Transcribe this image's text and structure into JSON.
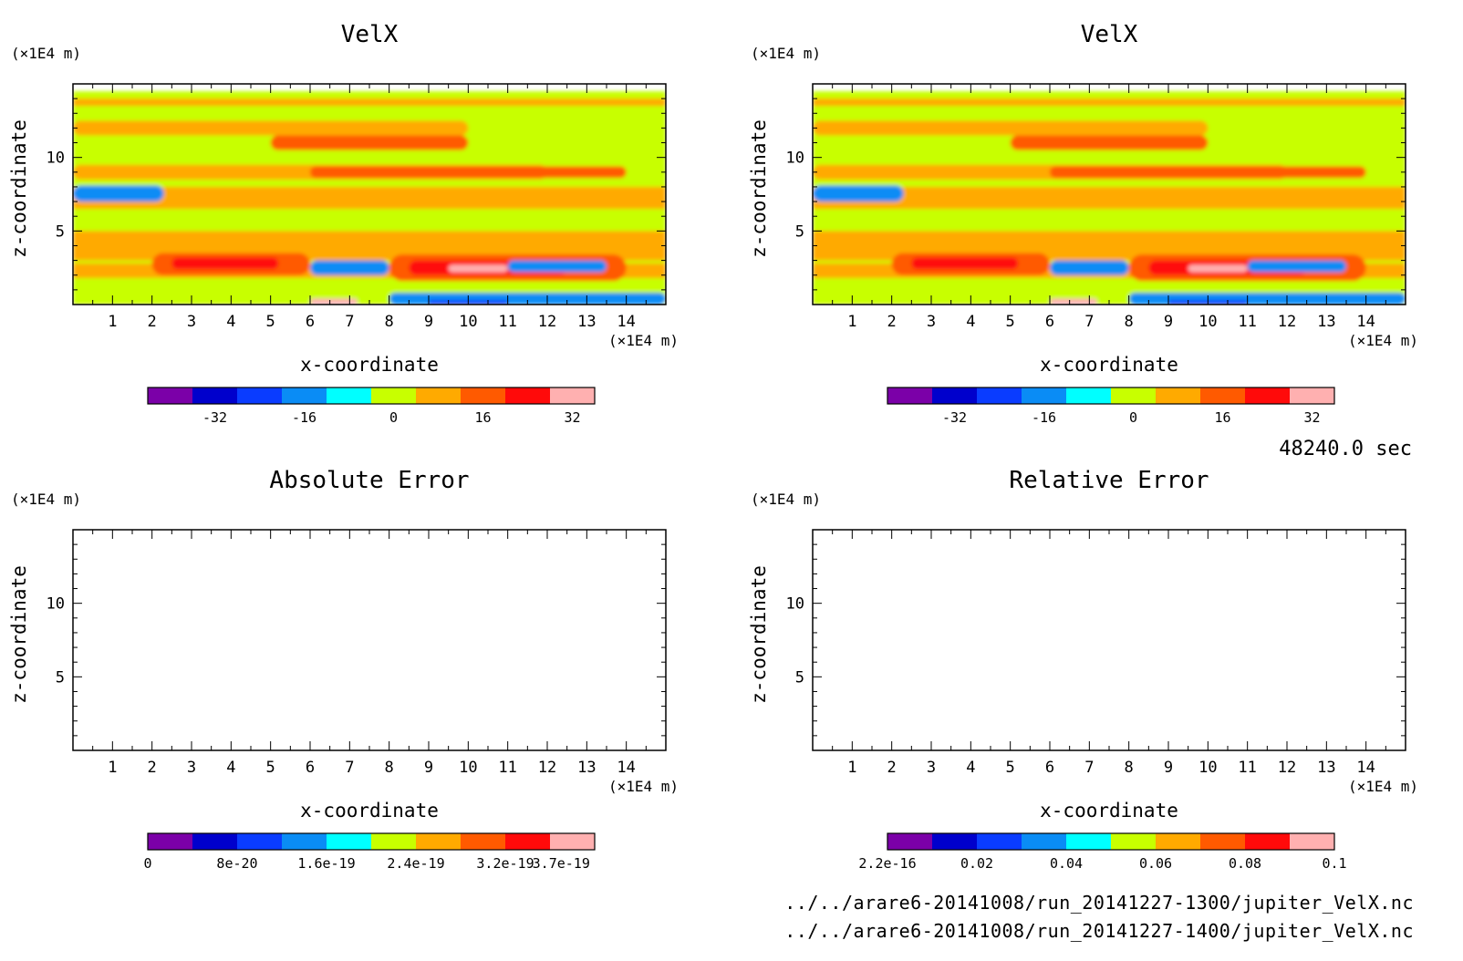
{
  "colors": {
    "palette": [
      "#7B00A8",
      "#0000CC",
      "#0A3CFF",
      "#0A8CF5",
      "#00FFFF",
      "#C8FF00",
      "#FFAA00",
      "#FF5A00",
      "#FF0A0A",
      "#FFB0B0"
    ],
    "frame": "#000000"
  },
  "time_label": "48240.0 sec",
  "footer": {
    "file1": "../../arare6-20141008/run_20141227-1300/jupiter_VelX.nc",
    "file2": "../../arare6-20141008/run_20141227-1400/jupiter_VelX.nc"
  },
  "panels": [
    {
      "title": "VelX",
      "xlabel": "x-coordinate",
      "ylabel": "z-coordinate",
      "xunit": "(×1E4 m)",
      "yunit": "(×1E4 m)",
      "xticks": [
        "1",
        "2",
        "3",
        "4",
        "5",
        "6",
        "7",
        "8",
        "9",
        "10",
        "11",
        "12",
        "13",
        "14"
      ],
      "yticks": [
        "5",
        "10"
      ],
      "colorbar_ticks": [
        [
          "-32",
          1.5
        ],
        [
          "-16",
          3.5
        ],
        [
          "0",
          5.5
        ],
        [
          "16",
          7.5
        ],
        [
          "32",
          9.5
        ]
      ]
    },
    {
      "title": "VelX",
      "xlabel": "x-coordinate",
      "ylabel": "z-coordinate",
      "xunit": "(×1E4 m)",
      "yunit": "(×1E4 m)",
      "xticks": [
        "1",
        "2",
        "3",
        "4",
        "5",
        "6",
        "7",
        "8",
        "9",
        "10",
        "11",
        "12",
        "13",
        "14"
      ],
      "yticks": [
        "5",
        "10"
      ],
      "colorbar_ticks": [
        [
          "-32",
          1.5
        ],
        [
          "-16",
          3.5
        ],
        [
          "0",
          5.5
        ],
        [
          "16",
          7.5
        ],
        [
          "32",
          9.5
        ]
      ]
    },
    {
      "title": "Absolute Error",
      "xlabel": "x-coordinate",
      "ylabel": "z-coordinate",
      "xunit": "(×1E4 m)",
      "yunit": "(×1E4 m)",
      "xticks": [
        "1",
        "2",
        "3",
        "4",
        "5",
        "6",
        "7",
        "8",
        "9",
        "10",
        "11",
        "12",
        "13",
        "14"
      ],
      "yticks": [
        "5",
        "10"
      ],
      "colorbar_ticks": [
        [
          "0",
          0
        ],
        [
          "8e-20",
          2
        ],
        [
          "1.6e-19",
          4
        ],
        [
          "2.4e-19",
          6
        ],
        [
          "3.2e-19",
          8
        ],
        [
          "3.7e-19",
          9.25
        ]
      ]
    },
    {
      "title": "Relative Error",
      "xlabel": "x-coordinate",
      "ylabel": "z-coordinate",
      "xunit": "(×1E4 m)",
      "yunit": "(×1E4 m)",
      "xticks": [
        "1",
        "2",
        "3",
        "4",
        "5",
        "6",
        "7",
        "8",
        "9",
        "10",
        "11",
        "12",
        "13",
        "14"
      ],
      "yticks": [
        "5",
        "10"
      ],
      "colorbar_ticks": [
        [
          "2.2e-16",
          0
        ],
        [
          "0.02",
          2
        ],
        [
          "0.04",
          4
        ],
        [
          "0.06",
          6
        ],
        [
          "0.08",
          8
        ],
        [
          "0.1",
          10
        ]
      ]
    }
  ],
  "chart_data": [
    {
      "type": "heatmap",
      "title": "VelX",
      "xlabel": "x-coordinate",
      "ylabel": "z-coordinate",
      "xlim": [
        0,
        15
      ],
      "ylim": [
        0,
        15
      ],
      "colorbar": {
        "levels": [
          -40,
          -32,
          -24,
          -16,
          -8,
          0,
          8,
          16,
          24,
          32,
          40
        ],
        "tick_labels": [
          "-32",
          "-16",
          "0",
          "16",
          "32"
        ]
      },
      "features": [
        {
          "x": [
            0,
            15
          ],
          "z": [
            0,
            14.5
          ],
          "level": 5
        },
        {
          "x": [
            0,
            15
          ],
          "z": [
            13.5,
            14
          ],
          "level": 6
        },
        {
          "x": [
            0,
            10
          ],
          "z": [
            11.5,
            12.5
          ],
          "level": 6
        },
        {
          "x": [
            5,
            10
          ],
          "z": [
            10.5,
            11.5
          ],
          "level": 7
        },
        {
          "x": [
            0,
            12
          ],
          "z": [
            8.5,
            9.5
          ],
          "level": 6
        },
        {
          "x": [
            6,
            14
          ],
          "z": [
            8.6,
            9.4
          ],
          "level": 7
        },
        {
          "x": [
            0,
            15
          ],
          "z": [
            6.5,
            8
          ],
          "level": 6
        },
        {
          "x": [
            0,
            2.3
          ],
          "z": [
            7,
            8.1
          ],
          "level": 3
        },
        {
          "x": [
            0,
            15
          ],
          "z": [
            3,
            5
          ],
          "level": 6
        },
        {
          "x": [
            0,
            15
          ],
          "z": [
            1.8,
            2.8
          ],
          "level": 6
        },
        {
          "x": [
            2,
            6
          ],
          "z": [
            2,
            3.5
          ],
          "level": 7
        },
        {
          "x": [
            2.5,
            5.2
          ],
          "z": [
            2.4,
            3.2
          ],
          "level": 8
        },
        {
          "x": [
            8,
            14
          ],
          "z": [
            1.6,
            3.4
          ],
          "level": 7
        },
        {
          "x": [
            8.5,
            12.5
          ],
          "z": [
            2,
            3
          ],
          "level": 8
        },
        {
          "x": [
            9.5,
            11
          ],
          "z": [
            2.2,
            2.7
          ],
          "level": 9
        },
        {
          "x": [
            6,
            8
          ],
          "z": [
            2,
            3
          ],
          "level": 3
        },
        {
          "x": [
            11,
            13.5
          ],
          "z": [
            2.2,
            3
          ],
          "level": 3
        },
        {
          "x": [
            8,
            15
          ],
          "z": [
            0,
            0.8
          ],
          "level": 3
        },
        {
          "x": [
            9,
            11
          ],
          "z": [
            0,
            0.3
          ],
          "level": 2
        },
        {
          "x": [
            6,
            7.2
          ],
          "z": [
            0,
            0.4
          ],
          "level": 9
        }
      ]
    },
    {
      "type": "heatmap",
      "title": "VelX",
      "xlabel": "x-coordinate",
      "ylabel": "z-coordinate",
      "xlim": [
        0,
        15
      ],
      "ylim": [
        0,
        15
      ],
      "colorbar": {
        "levels": [
          -40,
          -32,
          -24,
          -16,
          -8,
          0,
          8,
          16,
          24,
          32,
          40
        ],
        "tick_labels": [
          "-32",
          "-16",
          "0",
          "16",
          "32"
        ]
      },
      "features": "same field as panel 1"
    },
    {
      "type": "heatmap",
      "title": "Absolute Error",
      "xlabel": "x-coordinate",
      "ylabel": "z-coordinate",
      "xlim": [
        0,
        15
      ],
      "ylim": [
        0,
        15
      ],
      "values": "all zero (blank plot)",
      "colorbar": {
        "tick_labels": [
          "0",
          "8e-20",
          "1.6e-19",
          "2.4e-19",
          "3.2e-19",
          "3.7e-19"
        ]
      }
    },
    {
      "type": "heatmap",
      "title": "Relative Error",
      "xlabel": "x-coordinate",
      "ylabel": "z-coordinate",
      "xlim": [
        0,
        15
      ],
      "ylim": [
        0,
        15
      ],
      "values": "all zero (blank plot)",
      "colorbar": {
        "tick_labels": [
          "2.2e-16",
          "0.02",
          "0.04",
          "0.06",
          "0.08",
          "0.1"
        ]
      }
    }
  ]
}
